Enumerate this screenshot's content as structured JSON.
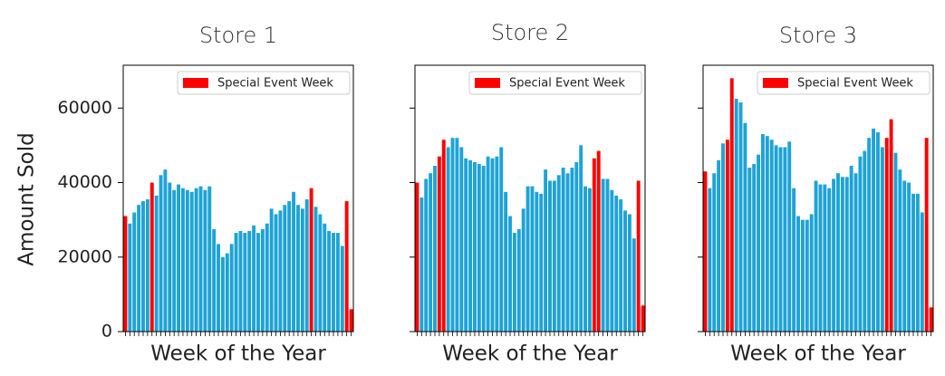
{
  "chart_data": [
    {
      "type": "bar",
      "title": "Store 1",
      "xlabel": "Week of the Year",
      "ylabel": "Amount Sold",
      "values": [
        31000,
        29000,
        32000,
        34000,
        35000,
        35500,
        40000,
        36500,
        42000,
        43500,
        40000,
        38000,
        39500,
        38500,
        38000,
        37500,
        38500,
        39000,
        38000,
        39000,
        27500,
        23500,
        20000,
        21000,
        23500,
        26500,
        27000,
        26500,
        27000,
        28500,
        26500,
        27500,
        29000,
        33000,
        31500,
        32500,
        34000,
        35000,
        37500,
        34000,
        33000,
        35500,
        38500,
        33500,
        31500,
        29000,
        27000,
        26500,
        26500,
        23000,
        35000,
        6000
      ],
      "color": "#1ea3d6",
      "highlight_color": "#ff0000",
      "highlight": [
        0,
        6,
        42,
        50,
        51
      ],
      "legend": "Special Event Week",
      "ylim": [
        0,
        71500
      ],
      "yticks": [
        0,
        20000,
        40000,
        60000
      ]
    },
    {
      "type": "bar",
      "title": "Store 2",
      "xlabel": "Week of the Year",
      "values": [
        40000,
        36000,
        41000,
        42500,
        44500,
        47000,
        51500,
        49500,
        52000,
        52000,
        49500,
        46500,
        46000,
        45500,
        45000,
        44500,
        47000,
        46500,
        47000,
        49500,
        37500,
        31000,
        26500,
        27500,
        33000,
        39000,
        39000,
        37500,
        37000,
        43500,
        40500,
        40500,
        42000,
        44000,
        42500,
        44000,
        45500,
        50000,
        39000,
        38500,
        46500,
        48500,
        41000,
        41000,
        38000,
        36500,
        35500,
        32500,
        31500,
        25000,
        40500,
        7000
      ],
      "color": "#1ea3d6",
      "highlight_color": "#ff0000",
      "highlight": [
        0,
        5,
        6,
        40,
        41,
        50,
        51
      ],
      "legend": "Special Event Week",
      "ylim": [
        0,
        71500
      ],
      "yticks": [
        0,
        20000,
        40000,
        60000
      ]
    },
    {
      "type": "bar",
      "title": "Store 3",
      "xlabel": "Week of the Year",
      "values": [
        43000,
        38500,
        42500,
        46000,
        50500,
        51500,
        68000,
        62500,
        61500,
        56000,
        44000,
        45000,
        47500,
        53000,
        52500,
        51500,
        50000,
        49500,
        49500,
        51000,
        38500,
        31000,
        30000,
        30000,
        31500,
        40500,
        39500,
        39500,
        38500,
        41000,
        42500,
        41500,
        41500,
        44500,
        42500,
        47000,
        48500,
        52000,
        54500,
        53500,
        49500,
        52000,
        57000,
        48000,
        43500,
        40500,
        40000,
        37000,
        37000,
        32000,
        52000,
        6500
      ],
      "color": "#1ea3d6",
      "highlight_color": "#ff0000",
      "highlight": [
        0,
        5,
        6,
        41,
        42,
        50,
        51
      ],
      "legend": "Special Event Week",
      "ylim": [
        0,
        71500
      ],
      "yticks": [
        0,
        20000,
        40000,
        60000
      ]
    }
  ]
}
